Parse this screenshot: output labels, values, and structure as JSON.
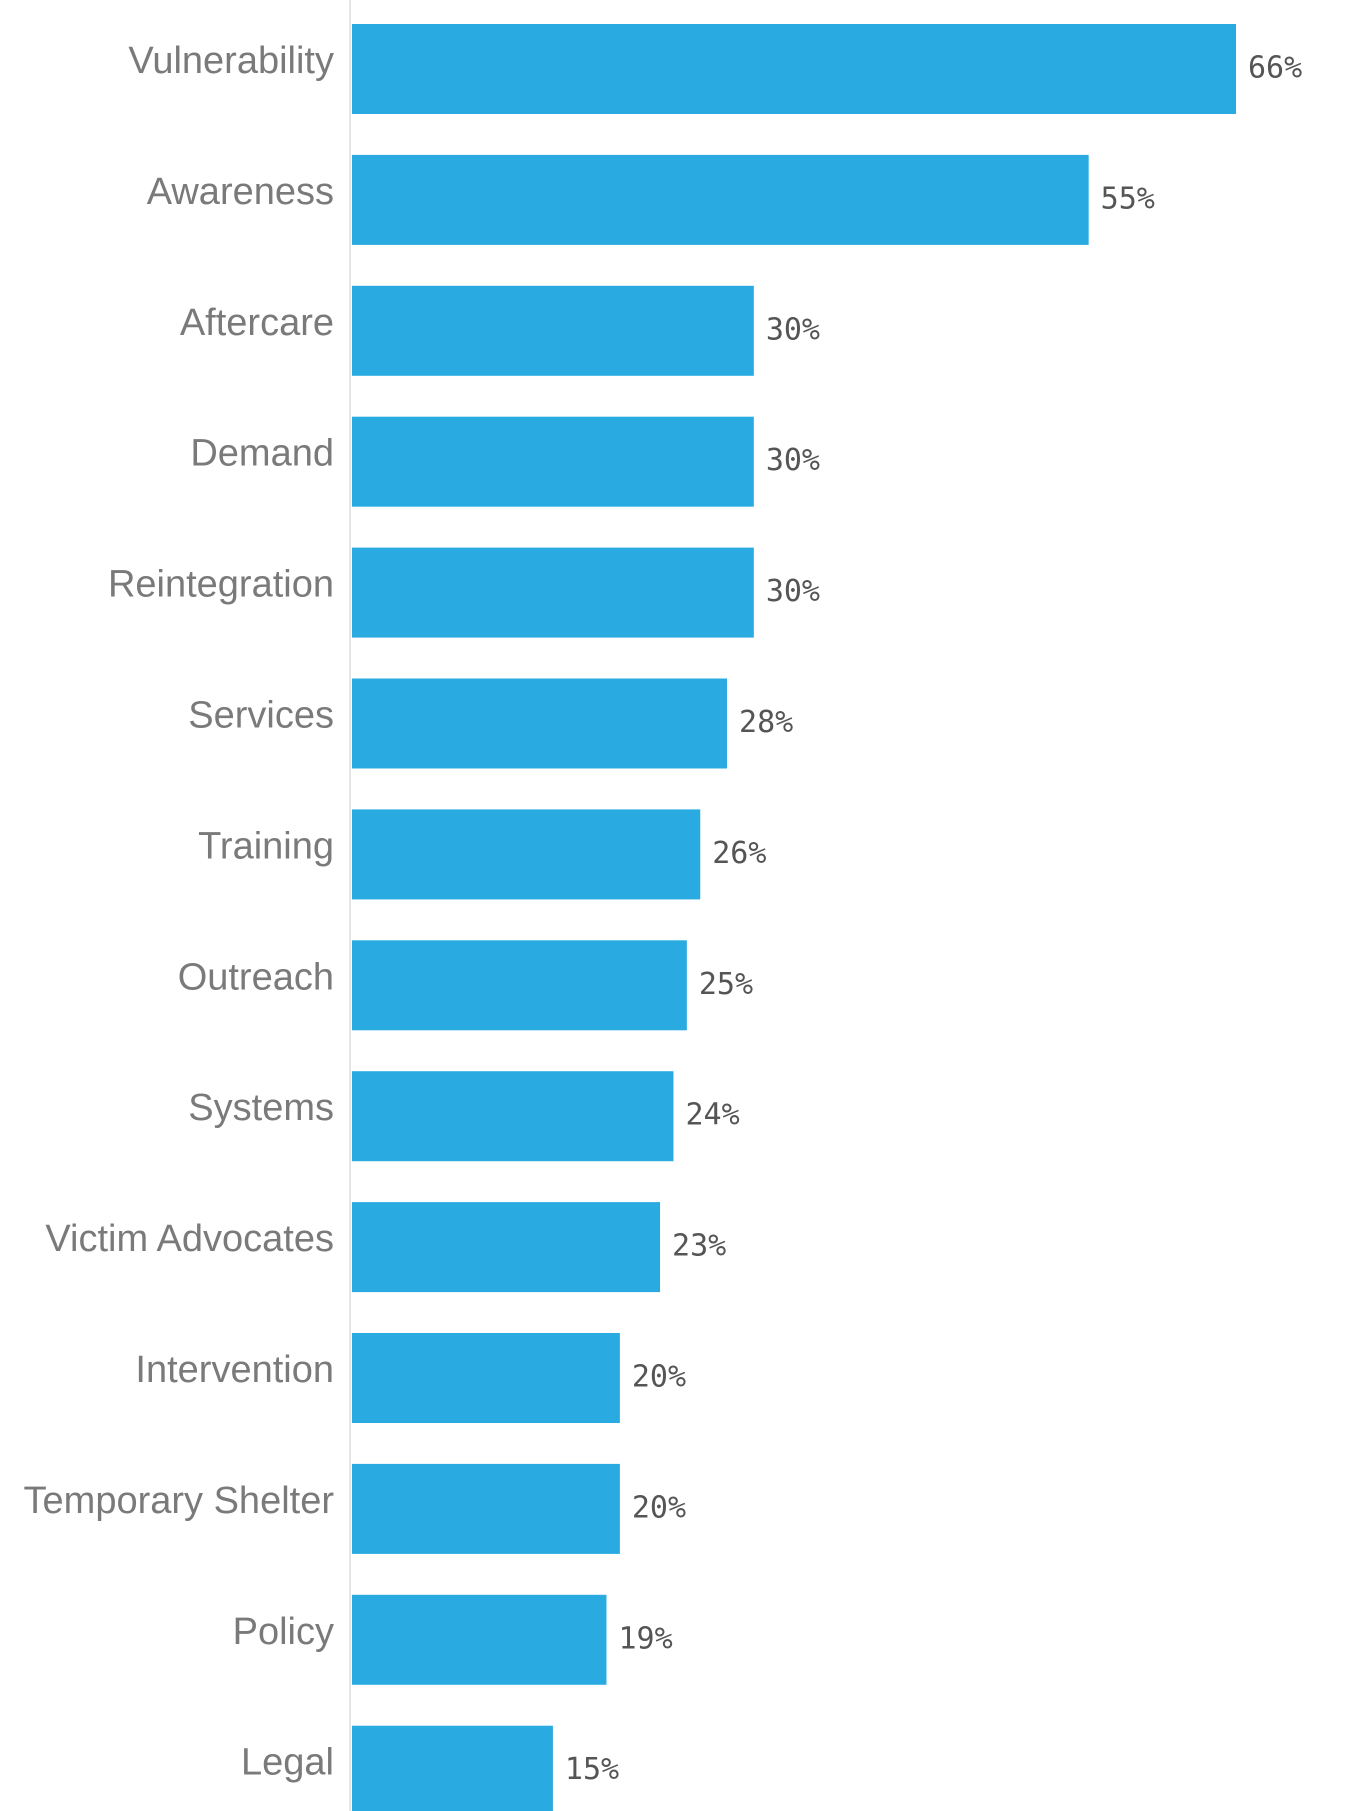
{
  "chart_data": {
    "type": "bar",
    "orientation": "horizontal",
    "categories": [
      "Vulnerability",
      "Awareness",
      "Aftercare",
      "Demand",
      "Reintegration",
      "Services",
      "Training",
      "Outreach",
      "Systems",
      "Victim Advocates",
      "Intervention",
      "Temporary Shelter",
      "Policy",
      "Legal"
    ],
    "values": [
      66,
      55,
      30,
      30,
      30,
      28,
      26,
      25,
      24,
      23,
      20,
      20,
      19,
      15
    ],
    "value_labels": [
      "66%",
      "55%",
      "30%",
      "30%",
      "30%",
      "28%",
      "26%",
      "25%",
      "24%",
      "23%",
      "20%",
      "20%",
      "19%",
      "15%"
    ],
    "unit": "%",
    "title": "",
    "xlabel": "",
    "ylabel": "",
    "xlim": [
      0,
      66
    ],
    "grid": false,
    "legend": "none",
    "bar_color": "#29abe2",
    "axis_color": "#e6e6e6"
  }
}
